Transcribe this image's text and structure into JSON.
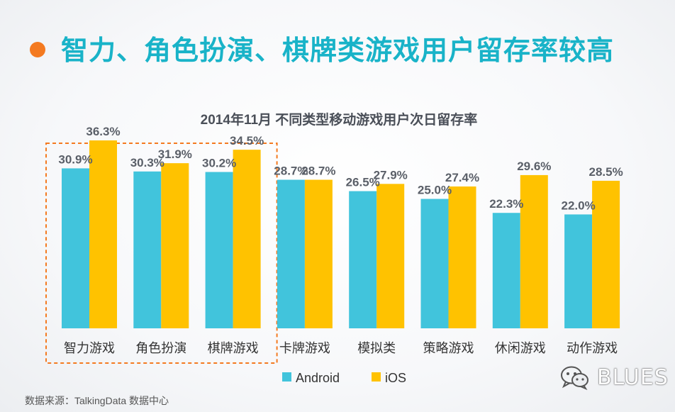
{
  "slide": {
    "title": "智力、角色扮演、棋牌类游戏用户留存率较高",
    "source": "数据来源：TalkingData 数据中心",
    "watermark": "BLUES",
    "accent_color": "#f47a20",
    "title_color": "#19b3c8"
  },
  "chart_data": {
    "type": "bar",
    "title": "2014年11月 不同类型移动游戏用户次日留存率",
    "categories": [
      "智力游戏",
      "角色扮演",
      "棋牌游戏",
      "卡牌游戏",
      "模拟类",
      "策略游戏",
      "休闲游戏",
      "动作游戏"
    ],
    "series": [
      {
        "name": "Android",
        "color": "#41c4dc",
        "values": [
          30.9,
          30.3,
          30.2,
          28.7,
          26.5,
          25.0,
          22.3,
          22.0
        ],
        "labels": [
          "30.9%",
          "30.3%",
          "30.2%",
          "28.7%",
          "26.5%",
          "25.0%",
          "22.3%",
          "22.0%"
        ]
      },
      {
        "name": "iOS",
        "color": "#ffc200",
        "values": [
          36.3,
          31.9,
          34.5,
          28.7,
          27.9,
          27.4,
          29.6,
          28.5
        ],
        "labels": [
          "36.3%",
          "31.9%",
          "34.5%",
          "28.7%",
          "27.9%",
          "27.4%",
          "29.6%",
          "28.5%"
        ]
      }
    ],
    "ylim": [
      0,
      40
    ],
    "grid": false,
    "legend": "bottom-center",
    "highlight_categories": [
      "智力游戏",
      "角色扮演",
      "棋牌游戏"
    ],
    "highlight_color": "#f47a20"
  }
}
